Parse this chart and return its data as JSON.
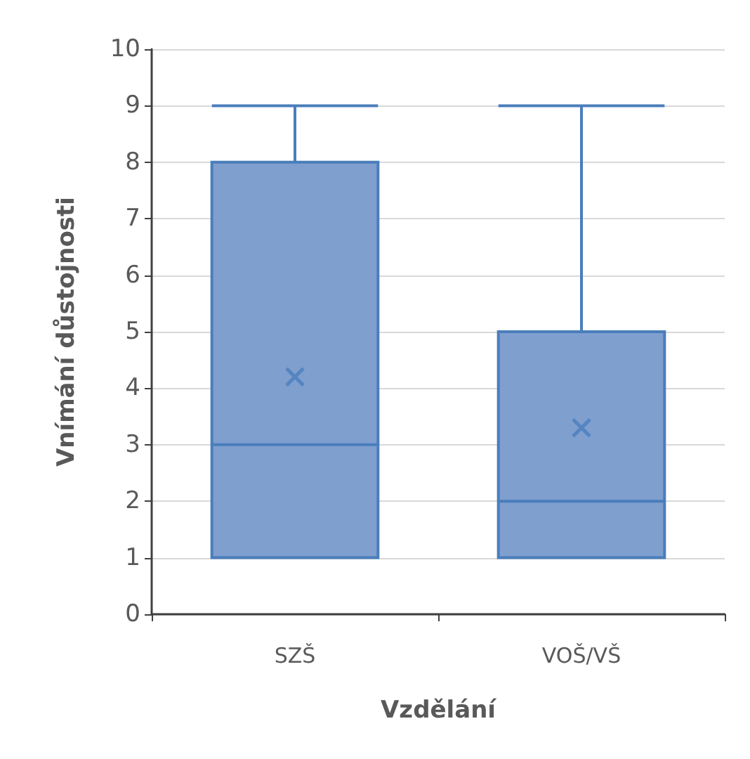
{
  "chart_data": {
    "type": "box",
    "xlabel": "Vzdělání",
    "ylabel": "Vnímání důstojnosti",
    "categories": [
      "SZŠ",
      "VOŠ/VŠ"
    ],
    "color": "#7f9fcf",
    "boxes": [
      {
        "low": 1,
        "q1": 1,
        "median": 3,
        "q3": 8,
        "high": 9,
        "mean": 4.2
      },
      {
        "low": 1,
        "q1": 1,
        "median": 2,
        "q3": 5,
        "high": 9,
        "mean": 3.3
      }
    ],
    "ylim": [
      0,
      10
    ],
    "yticks": [
      0,
      1,
      2,
      3,
      4,
      5,
      6,
      7,
      8,
      9,
      10
    ],
    "grid": "y"
  }
}
